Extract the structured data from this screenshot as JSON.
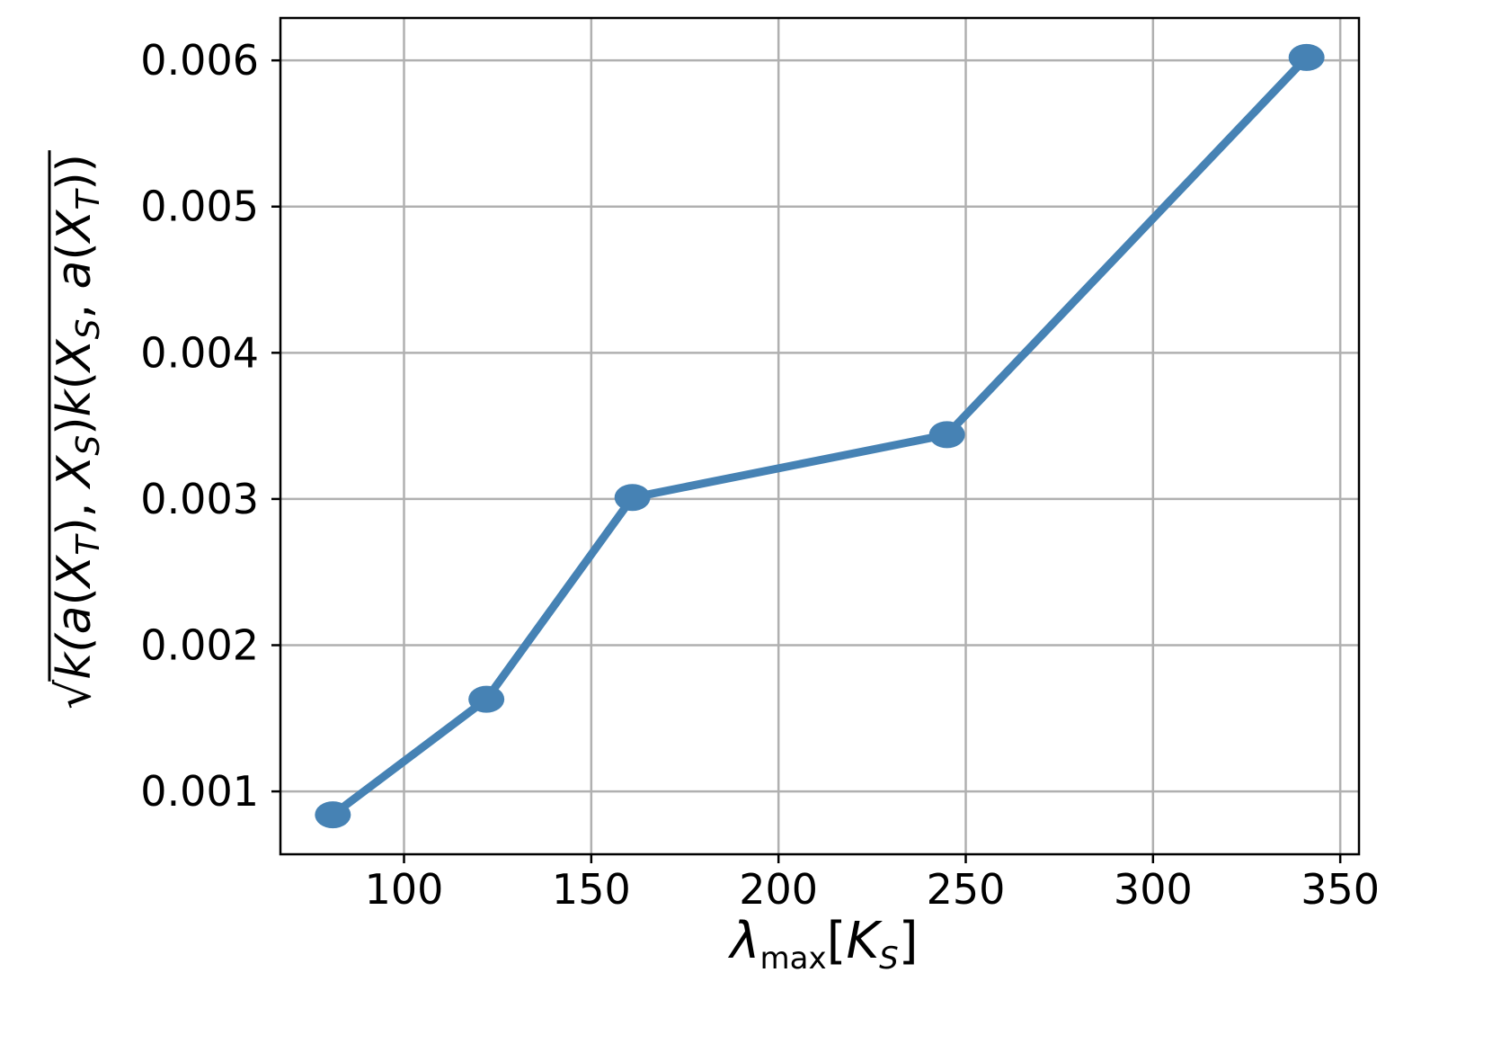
{
  "chart_data": {
    "type": "line",
    "title": "",
    "xlabel": {
      "main": "λ",
      "sub": "max",
      "bracket_open": "[",
      "K": "K",
      "K_sub": "S",
      "bracket_close": "]"
    },
    "ylabel": {
      "sqrt": "√",
      "parts": [
        {
          "t": "k(",
          "i": true
        },
        {
          "t": "a",
          "i": true
        },
        {
          "t": "(",
          "i": false
        },
        {
          "t": "X",
          "i": true
        },
        {
          "t": "T",
          "i": true,
          "s": true
        },
        {
          "t": "), ",
          "i": false
        },
        {
          "t": "X",
          "i": true
        },
        {
          "t": "S",
          "i": true,
          "s": true
        },
        {
          "t": ")",
          "i": false
        },
        {
          "t": "k",
          "i": true
        },
        {
          "t": "(",
          "i": false
        },
        {
          "t": "X",
          "i": true
        },
        {
          "t": "S",
          "i": true,
          "s": true
        },
        {
          "t": ", ",
          "i": false
        },
        {
          "t": "a",
          "i": true
        },
        {
          "t": "(",
          "i": false
        },
        {
          "t": "X",
          "i": true
        },
        {
          "t": "T",
          "i": true,
          "s": true
        },
        {
          "t": "))",
          "i": false
        }
      ]
    },
    "xlim": [
      67,
      355
    ],
    "ylim": [
      0.00057,
      0.00629
    ],
    "xticks": [
      100,
      150,
      200,
      250,
      300,
      350
    ],
    "xtick_labels": [
      "100",
      "150",
      "200",
      "250",
      "300",
      "350"
    ],
    "yticks": [
      0.001,
      0.002,
      0.003,
      0.004,
      0.005,
      0.006
    ],
    "ytick_labels": [
      "0.001",
      "0.002",
      "0.003",
      "0.004",
      "0.005",
      "0.006"
    ],
    "grid": true,
    "series": [
      {
        "color": "#4682b4",
        "x": [
          81,
          122,
          161,
          245,
          341
        ],
        "y": [
          0.00084,
          0.00163,
          0.00301,
          0.00344,
          0.00602
        ]
      }
    ]
  }
}
